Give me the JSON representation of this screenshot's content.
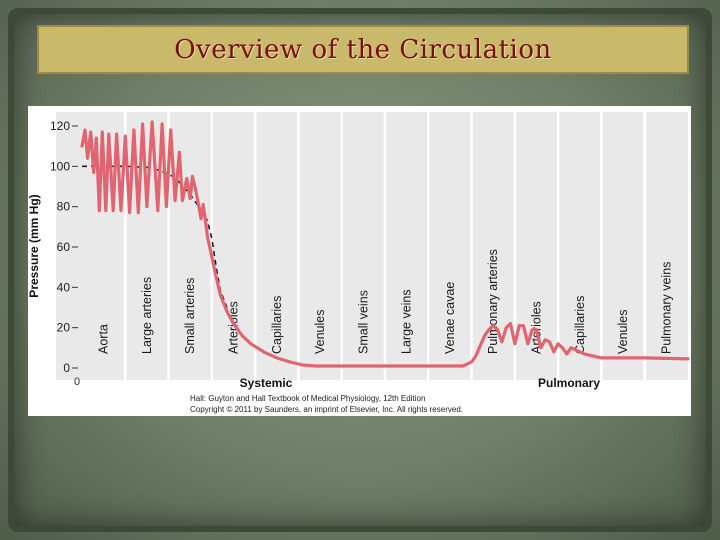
{
  "slide": {
    "title": "Overview of the Circulation"
  },
  "chart_data": {
    "type": "line",
    "ylabel": "Pressure (mm Hg)",
    "ylim": [
      0,
      120
    ],
    "yticks": [
      0,
      20,
      40,
      60,
      80,
      100,
      120
    ],
    "x_origin_label": "0",
    "vessels": [
      "Aorta",
      "Large arteries",
      "Small arteries",
      "Arterioles",
      "Capillaries",
      "Venules",
      "Small veins",
      "Large veins",
      "Venae cavae",
      "Pulmonary arteries",
      "Arterioles",
      "Capillaries",
      "Venules",
      "Pulmonary veins"
    ],
    "circuits": [
      "Systemic",
      "Pulmonary"
    ],
    "series": [
      {
        "style": "red-pulsatile",
        "points": [
          [
            0,
            110
          ],
          [
            0.07,
            118
          ],
          [
            0.13,
            104
          ],
          [
            0.2,
            117
          ],
          [
            0.27,
            97
          ],
          [
            0.33,
            114
          ],
          [
            0.4,
            78
          ],
          [
            0.47,
            117
          ],
          [
            0.55,
            78
          ],
          [
            0.62,
            116
          ],
          [
            0.72,
            78
          ],
          [
            0.8,
            116
          ],
          [
            0.9,
            78
          ],
          [
            1,
            115
          ],
          [
            1.1,
            77
          ],
          [
            1.2,
            118
          ],
          [
            1.3,
            77
          ],
          [
            1.4,
            121
          ],
          [
            1.5,
            80
          ],
          [
            1.62,
            122
          ],
          [
            1.75,
            78
          ],
          [
            1.85,
            121
          ],
          [
            1.95,
            80
          ],
          [
            2.05,
            118
          ],
          [
            2.15,
            83
          ],
          [
            2.25,
            107
          ],
          [
            2.32,
            83
          ],
          [
            2.42,
            94
          ],
          [
            2.5,
            84
          ],
          [
            2.55,
            95
          ],
          [
            2.62,
            89
          ],
          [
            2.7,
            80
          ],
          [
            2.75,
            74
          ],
          [
            2.8,
            81
          ],
          [
            2.85,
            73
          ],
          [
            2.9,
            65
          ],
          [
            3,
            55
          ],
          [
            3.1,
            45
          ],
          [
            3.2,
            36
          ],
          [
            3.35,
            28
          ],
          [
            3.5,
            22
          ],
          [
            3.7,
            16
          ],
          [
            3.9,
            12
          ],
          [
            4.2,
            8
          ],
          [
            4.5,
            5
          ],
          [
            4.8,
            3
          ],
          [
            5.1,
            1.5
          ],
          [
            5.4,
            1
          ],
          [
            5.7,
            1
          ],
          [
            6,
            1
          ],
          [
            7,
            1
          ],
          [
            8,
            1
          ],
          [
            8.8,
            1
          ],
          [
            9,
            3
          ],
          [
            9.1,
            6
          ],
          [
            9.2,
            11
          ],
          [
            9.3,
            16
          ],
          [
            9.4,
            19
          ],
          [
            9.5,
            21
          ],
          [
            9.6,
            19
          ],
          [
            9.7,
            13
          ],
          [
            9.8,
            20
          ],
          [
            9.9,
            22
          ],
          [
            10,
            12
          ],
          [
            10.1,
            21
          ],
          [
            10.2,
            21
          ],
          [
            10.3,
            12
          ],
          [
            10.4,
            19
          ],
          [
            10.5,
            19
          ],
          [
            10.6,
            10
          ],
          [
            10.7,
            14
          ],
          [
            10.8,
            13
          ],
          [
            10.9,
            8
          ],
          [
            11,
            12
          ],
          [
            11.1,
            10
          ],
          [
            11.2,
            7
          ],
          [
            11.3,
            10
          ],
          [
            11.4,
            9
          ],
          [
            11.6,
            7
          ],
          [
            11.8,
            6
          ],
          [
            12,
            5
          ],
          [
            13,
            5
          ],
          [
            14,
            4.5
          ]
        ]
      },
      {
        "style": "black-dashed-mean",
        "points": [
          [
            0,
            100
          ],
          [
            0.5,
            100
          ],
          [
            1,
            100
          ],
          [
            1.5,
            99.5
          ],
          [
            1.8,
            98
          ],
          [
            2.1,
            95
          ],
          [
            2.3,
            91
          ],
          [
            2.5,
            86
          ],
          [
            2.7,
            80
          ],
          [
            2.9,
            73
          ],
          [
            3,
            64
          ],
          [
            3.1,
            50
          ],
          [
            3.2,
            38
          ],
          [
            3.35,
            30
          ]
        ]
      }
    ]
  },
  "citation": {
    "line1": "Hall: Guyton and Hall Textbook of Medical Physiology, 12th Edition",
    "line2": "Copyright © 2011 by Saunders, an imprint of Elsevier, Inc. All rights reserved."
  }
}
